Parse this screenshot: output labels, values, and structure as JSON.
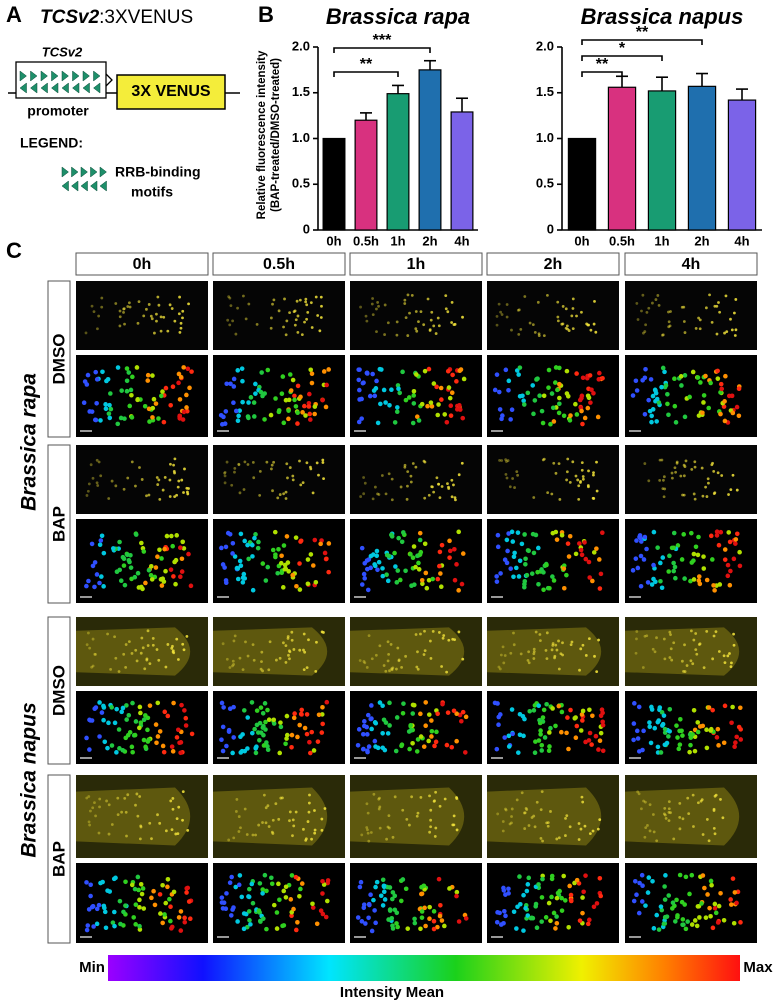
{
  "panel_labels": [
    "A",
    "B",
    "C"
  ],
  "construct": {
    "title_parts": [
      "TCSv2",
      ":3XVENUS"
    ],
    "promoter_name": "TCSv2",
    "promoter": "promoter",
    "reporter": "3X VENUS",
    "legend_title": "LEGEND:",
    "legend_lines": [
      "RRB-binding",
      "motifs"
    ]
  },
  "chart_data": [
    {
      "type": "bar",
      "title": "Brassica rapa",
      "y_label": [
        "Relative fluorescence intensity",
        "(BAP-treated/DMSO-treated)"
      ],
      "categories": [
        "0h",
        "0.5h",
        "1h",
        "2h",
        "4h"
      ],
      "values": [
        1.0,
        1.2,
        1.49,
        1.75,
        1.29
      ],
      "errors": [
        0,
        0.08,
        0.09,
        0.1,
        0.15
      ],
      "colors": [
        "#000000",
        "#d8317f",
        "#189c72",
        "#1f6fae",
        "#7b63e8"
      ],
      "annotations": [
        "**",
        "***"
      ],
      "ylim": [
        0,
        2
      ],
      "yticks": [
        0,
        0.5,
        {
          "value": 1,
          "label": "1.0"
        },
        1.5,
        {
          "value": 2,
          "label": "2.0"
        }
      ]
    },
    {
      "type": "bar",
      "title": "Brassica napus",
      "categories": [
        "0h",
        "0.5h",
        "1h",
        "2h",
        "4h"
      ],
      "values": [
        1.0,
        1.56,
        1.52,
        1.57,
        1.42
      ],
      "errors": [
        0,
        0.12,
        0.15,
        0.14,
        0.12
      ],
      "colors": [
        "#000000",
        "#d8317f",
        "#189c72",
        "#1f6fae",
        "#7b63e8"
      ],
      "annotations": [
        "**",
        "*",
        "**"
      ],
      "ylim": [
        0,
        2
      ],
      "yticks": [
        0,
        0.5,
        {
          "value": 1,
          "label": "1.0"
        },
        1.5,
        {
          "value": 2,
          "label": "2.0"
        }
      ]
    }
  ],
  "microscopy": {
    "timepoints": [
      "0h",
      "0.5h",
      "1h",
      "2h",
      "4h"
    ],
    "species": [
      "Brassica rapa",
      "Brassica napus"
    ],
    "treatments": [
      "DMSO",
      "BAP",
      "DMSO",
      "BAP"
    ],
    "colorbar": {
      "min": "Min",
      "max": "Max",
      "label": "Intensity Mean"
    }
  }
}
